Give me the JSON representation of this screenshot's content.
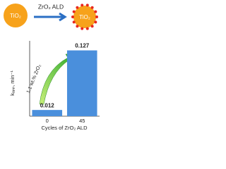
{
  "diagram": {
    "left_label": "TiO₂",
    "arrow_label": "ZrO₂ ALD",
    "right_label": "TiO₂"
  },
  "chart_data": {
    "type": "bar",
    "ylabel": "kₐₚₚ, min⁻¹",
    "xlabel": "Cycles of ZrO₂ ALD",
    "categories": [
      "0",
      "45"
    ],
    "values": [
      0.012,
      0.127
    ],
    "color": "#4a8fdc",
    "ylim": [
      0,
      0.14
    ],
    "annotation": "1.1 wt.% ZrO₂"
  }
}
